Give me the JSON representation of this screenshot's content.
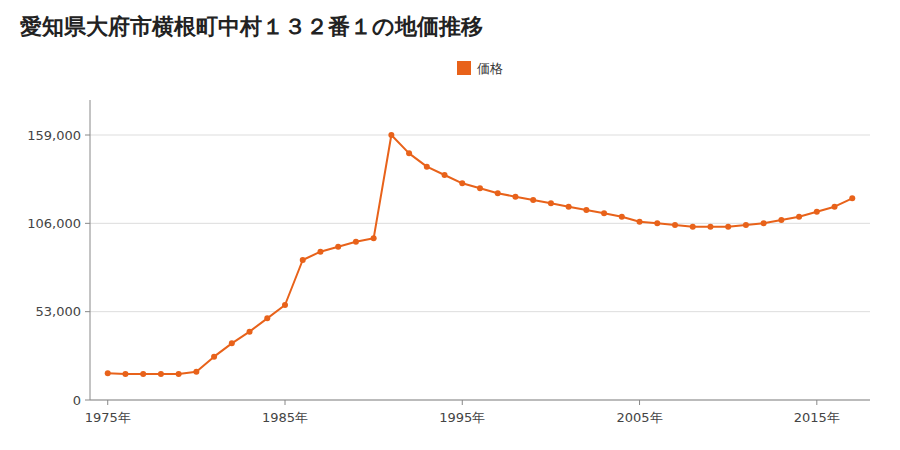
{
  "chart_data": {
    "type": "line",
    "title": "愛知県大府市横根町中村１３２番１の地価推移",
    "x": [
      1975,
      1976,
      1977,
      1978,
      1979,
      1980,
      1981,
      1982,
      1983,
      1984,
      1985,
      1986,
      1987,
      1988,
      1989,
      1990,
      1991,
      1992,
      1993,
      1994,
      1995,
      1996,
      1997,
      1998,
      1999,
      2000,
      2001,
      2002,
      2003,
      2004,
      2005,
      2006,
      2007,
      2008,
      2009,
      2010,
      2011,
      2012,
      2013,
      2014,
      2015,
      2016,
      2017
    ],
    "series": [
      {
        "name": "価格",
        "color": "#E8621A",
        "marker": "circle",
        "values": [
          16000,
          15600,
          15600,
          15600,
          15600,
          17000,
          26000,
          34000,
          41000,
          49000,
          57000,
          84000,
          89000,
          92000,
          95000,
          97000,
          159000,
          148000,
          140000,
          135000,
          130000,
          127000,
          124000,
          122000,
          120000,
          118000,
          116000,
          114000,
          112000,
          110000,
          107000,
          106000,
          105000,
          104000,
          104000,
          104000,
          105000,
          106000,
          108000,
          110000,
          113000,
          116000,
          121000
        ]
      }
    ],
    "xlim": [
      1974,
      2018
    ],
    "xticks": [
      {
        "value": 1975,
        "label": "1975年"
      },
      {
        "value": 1985,
        "label": "1985年"
      },
      {
        "value": 1995,
        "label": "1995年"
      },
      {
        "value": 2005,
        "label": "2005年"
      },
      {
        "value": 2015,
        "label": "2015年"
      }
    ],
    "ylim": [
      0,
      180000
    ],
    "yticks": [
      0,
      {
        "value": 53000,
        "label": "53,000"
      },
      {
        "value": 106000,
        "label": "106,000"
      },
      {
        "value": 159000,
        "label": "159,000"
      }
    ],
    "grid": true,
    "legend": "top"
  }
}
